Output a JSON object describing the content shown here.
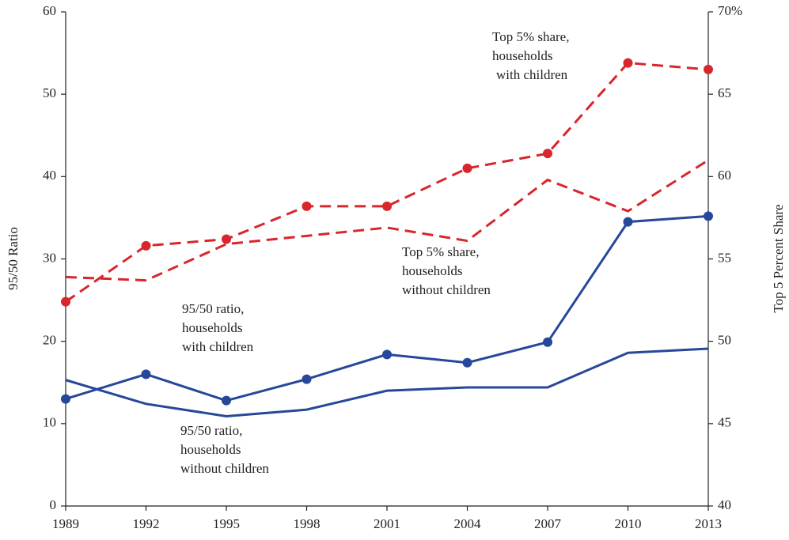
{
  "chart_data": {
    "type": "line",
    "categories": [
      "1989",
      "1992",
      "1995",
      "1998",
      "2001",
      "2004",
      "2007",
      "2010",
      "2013"
    ],
    "y_label": "95/50 Ratio",
    "y2_label": "Top 5 Percent Share",
    "ylim": [
      0,
      60
    ],
    "yticks": [
      0,
      10,
      20,
      30,
      40,
      50,
      60
    ],
    "y2lim": [
      40,
      70
    ],
    "y2ticks": [
      40,
      45,
      50,
      55,
      60,
      65,
      {
        "value": 70,
        "label": "70%"
      }
    ],
    "series": [
      {
        "color": "#27479a",
        "style": "solid",
        "markers": true,
        "values": [
          13.0,
          16.0,
          12.8,
          15.4,
          18.4,
          17.4,
          19.9,
          34.5,
          35.2
        ]
      },
      {
        "color": "#27479a",
        "style": "solid",
        "markers": false,
        "values": [
          15.3,
          12.4,
          10.9,
          11.7,
          14.0,
          14.4,
          14.4,
          18.6,
          19.1
        ]
      },
      {
        "color": "#d8262c",
        "style": "dashed",
        "markers": true,
        "axis": "y2",
        "values": [
          52.4,
          55.8,
          56.2,
          58.2,
          58.2,
          60.5,
          61.4,
          66.9,
          66.5
        ]
      },
      {
        "color": "#d8262c",
        "style": "dashed",
        "markers": false,
        "axis": "y2",
        "values": [
          53.9,
          53.7,
          55.9,
          56.4,
          56.9,
          56.1,
          59.8,
          57.9,
          61.0
        ]
      }
    ],
    "annotations": [
      [
        "95/50 ratio,",
        "households",
        "with children"
      ],
      [
        "95/50 ratio,",
        "households",
        "without children"
      ],
      [
        "Top 5% share,",
        "households",
        "with children"
      ],
      [
        "Top 5% share,",
        "households",
        "without children"
      ]
    ]
  }
}
